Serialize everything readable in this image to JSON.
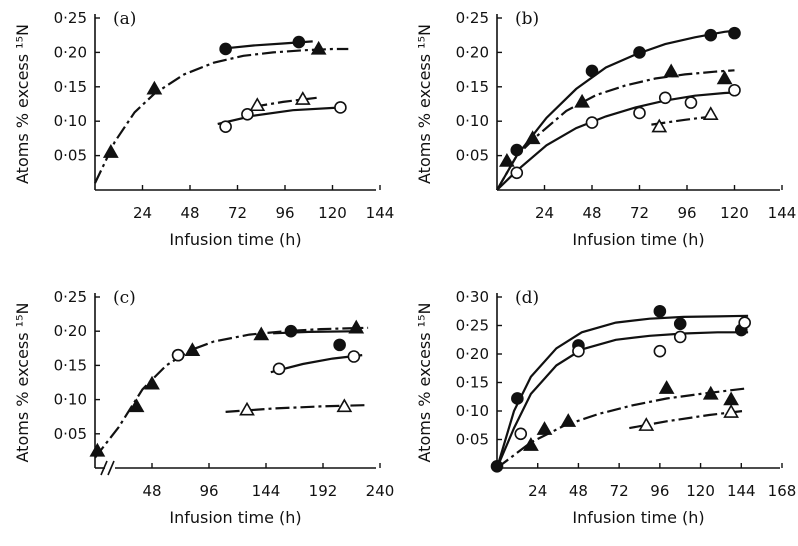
{
  "chart_data": [
    {
      "type": "scatter",
      "panel_label": "(a)",
      "xlabel": "Infusion time (h)",
      "ylabel": "Atoms % excess ¹⁵N",
      "xlim": [
        0,
        144
      ],
      "ylim": [
        0,
        0.25
      ],
      "xticks": [
        24,
        48,
        72,
        96,
        120,
        144
      ],
      "xtick_labels": [
        "24",
        "48",
        "72",
        "96",
        "120",
        "144"
      ],
      "yticks": [
        0.05,
        0.1,
        0.15,
        0.2,
        0.25
      ],
      "ytick_labels": [
        "0·05",
        "0·10",
        "0·15",
        "0·20",
        "0·25"
      ],
      "series": [
        {
          "marker": "filled-circle",
          "x": [
            66,
            103
          ],
          "y": [
            0.205,
            0.215
          ]
        },
        {
          "marker": "filled-triangle",
          "x": [
            8,
            30,
            113
          ],
          "y": [
            0.055,
            0.147,
            0.205
          ]
        },
        {
          "marker": "open-circle",
          "x": [
            66,
            77,
            124
          ],
          "y": [
            0.092,
            0.11,
            0.12
          ]
        },
        {
          "marker": "open-triangle",
          "x": [
            82,
            105
          ],
          "y": [
            0.123,
            0.132
          ]
        }
      ],
      "curves": [
        {
          "style": "solid",
          "x": [
            66,
            80,
            95,
            110
          ],
          "y": [
            0.206,
            0.21,
            0.213,
            0.216
          ]
        },
        {
          "style": "dash",
          "x": [
            0,
            10,
            20,
            30,
            45,
            60,
            75,
            90,
            105,
            120,
            128
          ],
          "y": [
            0.01,
            0.07,
            0.113,
            0.14,
            0.168,
            0.185,
            0.195,
            0.2,
            0.203,
            0.205,
            0.205
          ]
        },
        {
          "style": "solid",
          "x": [
            62,
            80,
            100,
            125
          ],
          "y": [
            0.096,
            0.108,
            0.116,
            0.12
          ]
        },
        {
          "style": "dash",
          "x": [
            80,
            95,
            112
          ],
          "y": [
            0.121,
            0.128,
            0.134
          ]
        }
      ]
    },
    {
      "type": "scatter",
      "panel_label": "(b)",
      "xlabel": "Infusion time (h)",
      "ylabel": "Atoms % excess ¹⁵N",
      "xlim": [
        0,
        144
      ],
      "ylim": [
        0,
        0.25
      ],
      "xticks": [
        24,
        48,
        72,
        96,
        120,
        144
      ],
      "xtick_labels": [
        "24",
        "48",
        "72",
        "96",
        "120",
        "144"
      ],
      "yticks": [
        0.05,
        0.1,
        0.15,
        0.2,
        0.25
      ],
      "ytick_labels": [
        "0·05",
        "0·10",
        "0·15",
        "0·20",
        "0·25"
      ],
      "series": [
        {
          "marker": "filled-circle",
          "x": [
            10,
            48,
            72,
            108,
            120
          ],
          "y": [
            0.058,
            0.173,
            0.2,
            0.225,
            0.228
          ]
        },
        {
          "marker": "filled-triangle",
          "x": [
            5,
            18,
            43,
            88,
            115
          ],
          "y": [
            0.042,
            0.075,
            0.128,
            0.172,
            0.162
          ]
        },
        {
          "marker": "open-circle",
          "x": [
            10,
            48,
            72,
            85,
            98,
            120
          ],
          "y": [
            0.025,
            0.098,
            0.112,
            0.134,
            0.127,
            0.145
          ]
        },
        {
          "marker": "open-triangle",
          "x": [
            82,
            108
          ],
          "y": [
            0.092,
            0.11
          ]
        }
      ],
      "curves": [
        {
          "style": "solid",
          "x": [
            0,
            10,
            25,
            40,
            55,
            70,
            85,
            100,
            115,
            122
          ],
          "y": [
            0.0,
            0.05,
            0.105,
            0.147,
            0.178,
            0.197,
            0.212,
            0.222,
            0.23,
            0.232
          ]
        },
        {
          "style": "dash",
          "x": [
            0,
            10,
            20,
            35,
            50,
            65,
            80,
            95,
            110,
            120
          ],
          "y": [
            0.0,
            0.05,
            0.078,
            0.115,
            0.138,
            0.152,
            0.162,
            0.168,
            0.172,
            0.174
          ]
        },
        {
          "style": "solid",
          "x": [
            0,
            10,
            25,
            40,
            55,
            70,
            85,
            100,
            115,
            122
          ],
          "y": [
            0.0,
            0.028,
            0.065,
            0.09,
            0.107,
            0.12,
            0.13,
            0.137,
            0.141,
            0.142
          ]
        },
        {
          "style": "dash",
          "x": [
            78,
            95,
            112
          ],
          "y": [
            0.095,
            0.102,
            0.108
          ]
        }
      ]
    },
    {
      "type": "scatter",
      "panel_label": "(c)",
      "xlabel": "Infusion time (h)",
      "ylabel": "Atoms % excess ¹⁵N",
      "xlim": [
        0,
        240
      ],
      "ylim": [
        0,
        0.25
      ],
      "axis_break": true,
      "xticks": [
        48,
        96,
        144,
        192,
        240
      ],
      "xtick_labels": [
        "48",
        "96",
        "144",
        "192",
        "240"
      ],
      "yticks": [
        0.05,
        0.1,
        0.15,
        0.2,
        0.25
      ],
      "ytick_labels": [
        "0·05",
        "0·10",
        "0·15",
        "0·20",
        "0·25"
      ],
      "series": [
        {
          "marker": "filled-circle",
          "x": [
            70,
            165,
            206
          ],
          "y": [
            0.165,
            0.2,
            0.18
          ]
        },
        {
          "marker": "filled-triangle",
          "x": [
            2,
            35,
            48,
            82,
            140,
            220
          ],
          "y": [
            0.025,
            0.09,
            0.123,
            0.172,
            0.195,
            0.205
          ]
        },
        {
          "marker": "open-circle",
          "x": [
            70,
            155,
            218
          ],
          "y": [
            0.165,
            0.145,
            0.163
          ]
        },
        {
          "marker": "open-triangle",
          "x": [
            128,
            210
          ],
          "y": [
            0.085,
            0.09
          ]
        }
      ],
      "curves": [
        {
          "style": "dash",
          "x": [
            0,
            20,
            40,
            60,
            80,
            100,
            130,
            160,
            190,
            230
          ],
          "y": [
            0.015,
            0.06,
            0.115,
            0.15,
            0.172,
            0.185,
            0.195,
            0.2,
            0.203,
            0.205
          ]
        },
        {
          "style": "solid",
          "x": [
            150,
            180,
            225
          ],
          "y": [
            0.197,
            0.199,
            0.2
          ]
        },
        {
          "style": "solid",
          "x": [
            148,
            175,
            200,
            225
          ],
          "y": [
            0.14,
            0.152,
            0.16,
            0.165
          ]
        },
        {
          "style": "dash",
          "x": [
            110,
            150,
            190,
            230
          ],
          "y": [
            0.082,
            0.087,
            0.09,
            0.092
          ]
        }
      ]
    },
    {
      "type": "scatter",
      "panel_label": "(d)",
      "xlabel": "Infusion time (h)",
      "ylabel": "Atoms % excess ¹⁵N",
      "xlim": [
        0,
        168
      ],
      "ylim": [
        0,
        0.3
      ],
      "xticks": [
        24,
        48,
        72,
        96,
        120,
        144,
        168
      ],
      "xtick_labels": [
        "24",
        "48",
        "72",
        "96",
        "120",
        "144",
        "168"
      ],
      "yticks": [
        0.05,
        0.1,
        0.15,
        0.2,
        0.25,
        0.3
      ],
      "ytick_labels": [
        "0·05",
        "0·10",
        "0·15",
        "0·20",
        "0·25",
        "0·30"
      ],
      "series": [
        {
          "marker": "filled-circle",
          "x": [
            0,
            12,
            48,
            96,
            108,
            144
          ],
          "y": [
            0.003,
            0.122,
            0.215,
            0.275,
            0.253,
            0.242
          ]
        },
        {
          "marker": "filled-triangle",
          "x": [
            20,
            28,
            42,
            100,
            126,
            138
          ],
          "y": [
            0.04,
            0.068,
            0.082,
            0.14,
            0.13,
            0.12
          ]
        },
        {
          "marker": "open-circle",
          "x": [
            14,
            48,
            96,
            108,
            146
          ],
          "y": [
            0.06,
            0.205,
            0.205,
            0.23,
            0.255
          ]
        },
        {
          "marker": "open-triangle",
          "x": [
            88,
            138
          ],
          "y": [
            0.075,
            0.098
          ]
        }
      ],
      "curves": [
        {
          "style": "solid",
          "x": [
            0,
            10,
            20,
            35,
            50,
            70,
            90,
            110,
            130,
            148
          ],
          "y": [
            0.0,
            0.1,
            0.16,
            0.21,
            0.238,
            0.255,
            0.262,
            0.265,
            0.266,
            0.267
          ]
        },
        {
          "style": "solid",
          "x": [
            0,
            10,
            20,
            35,
            50,
            70,
            90,
            110,
            130,
            148
          ],
          "y": [
            0.0,
            0.07,
            0.13,
            0.18,
            0.208,
            0.225,
            0.232,
            0.236,
            0.238,
            0.238
          ]
        },
        {
          "style": "dash",
          "x": [
            0,
            20,
            40,
            60,
            80,
            100,
            120,
            148
          ],
          "y": [
            0.0,
            0.045,
            0.075,
            0.095,
            0.11,
            0.122,
            0.13,
            0.14
          ]
        },
        {
          "style": "dash",
          "x": [
            78,
            100,
            125,
            145
          ],
          "y": [
            0.07,
            0.082,
            0.093,
            0.1
          ]
        }
      ]
    }
  ]
}
